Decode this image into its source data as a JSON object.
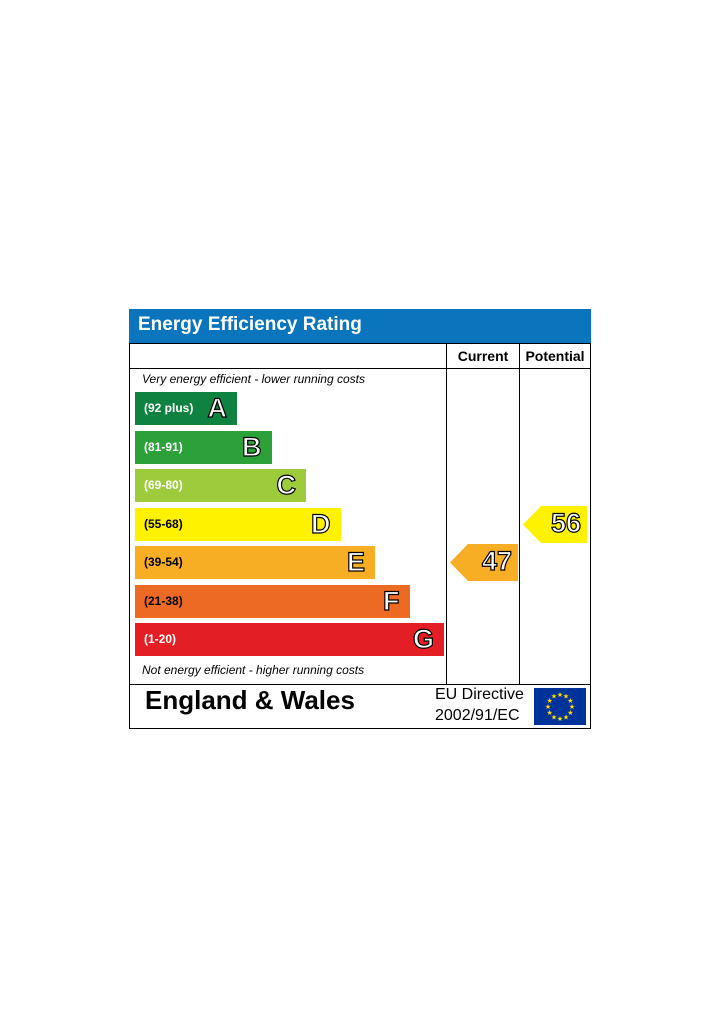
{
  "chart_data": {
    "type": "bar",
    "title": "Energy Efficiency Rating",
    "columns": [
      "Current",
      "Potential"
    ],
    "top_note": "Very energy efficient - lower running costs",
    "bottom_note": "Not energy efficient - higher running costs",
    "bands": [
      {
        "letter": "A",
        "range": "(92 plus)",
        "min": 92,
        "max": 100,
        "color": "#0f8141",
        "text_color": "#ffffff"
      },
      {
        "letter": "B",
        "range": "(81-91)",
        "min": 81,
        "max": 91,
        "color": "#2ca13a",
        "text_color": "#ffffff"
      },
      {
        "letter": "C",
        "range": "(69-80)",
        "min": 69,
        "max": 80,
        "color": "#9dcb3c",
        "text_color": "#ffffff"
      },
      {
        "letter": "D",
        "range": "(55-68)",
        "min": 55,
        "max": 68,
        "color": "#fff200",
        "text_color": "#000000"
      },
      {
        "letter": "E",
        "range": "(39-54)",
        "min": 39,
        "max": 54,
        "color": "#f7ae25",
        "text_color": "#000000"
      },
      {
        "letter": "F",
        "range": "(21-38)",
        "min": 21,
        "max": 38,
        "color": "#ed6a24",
        "text_color": "#000000"
      },
      {
        "letter": "G",
        "range": "(1-20)",
        "min": 1,
        "max": 20,
        "color": "#e41e25",
        "text_color": "#ffffff"
      }
    ],
    "current": {
      "value": 47,
      "band": "E",
      "color": "#f7ae25"
    },
    "potential": {
      "value": 56,
      "band": "D",
      "color": "#fff200"
    }
  },
  "footer": {
    "region": "England & Wales",
    "directive_line1": "EU Directive",
    "directive_line2": "2002/91/EC"
  },
  "colors": {
    "header_blue": "#0a75bd",
    "eu_flag_blue": "#003399",
    "eu_flag_star": "#ffdd00"
  }
}
